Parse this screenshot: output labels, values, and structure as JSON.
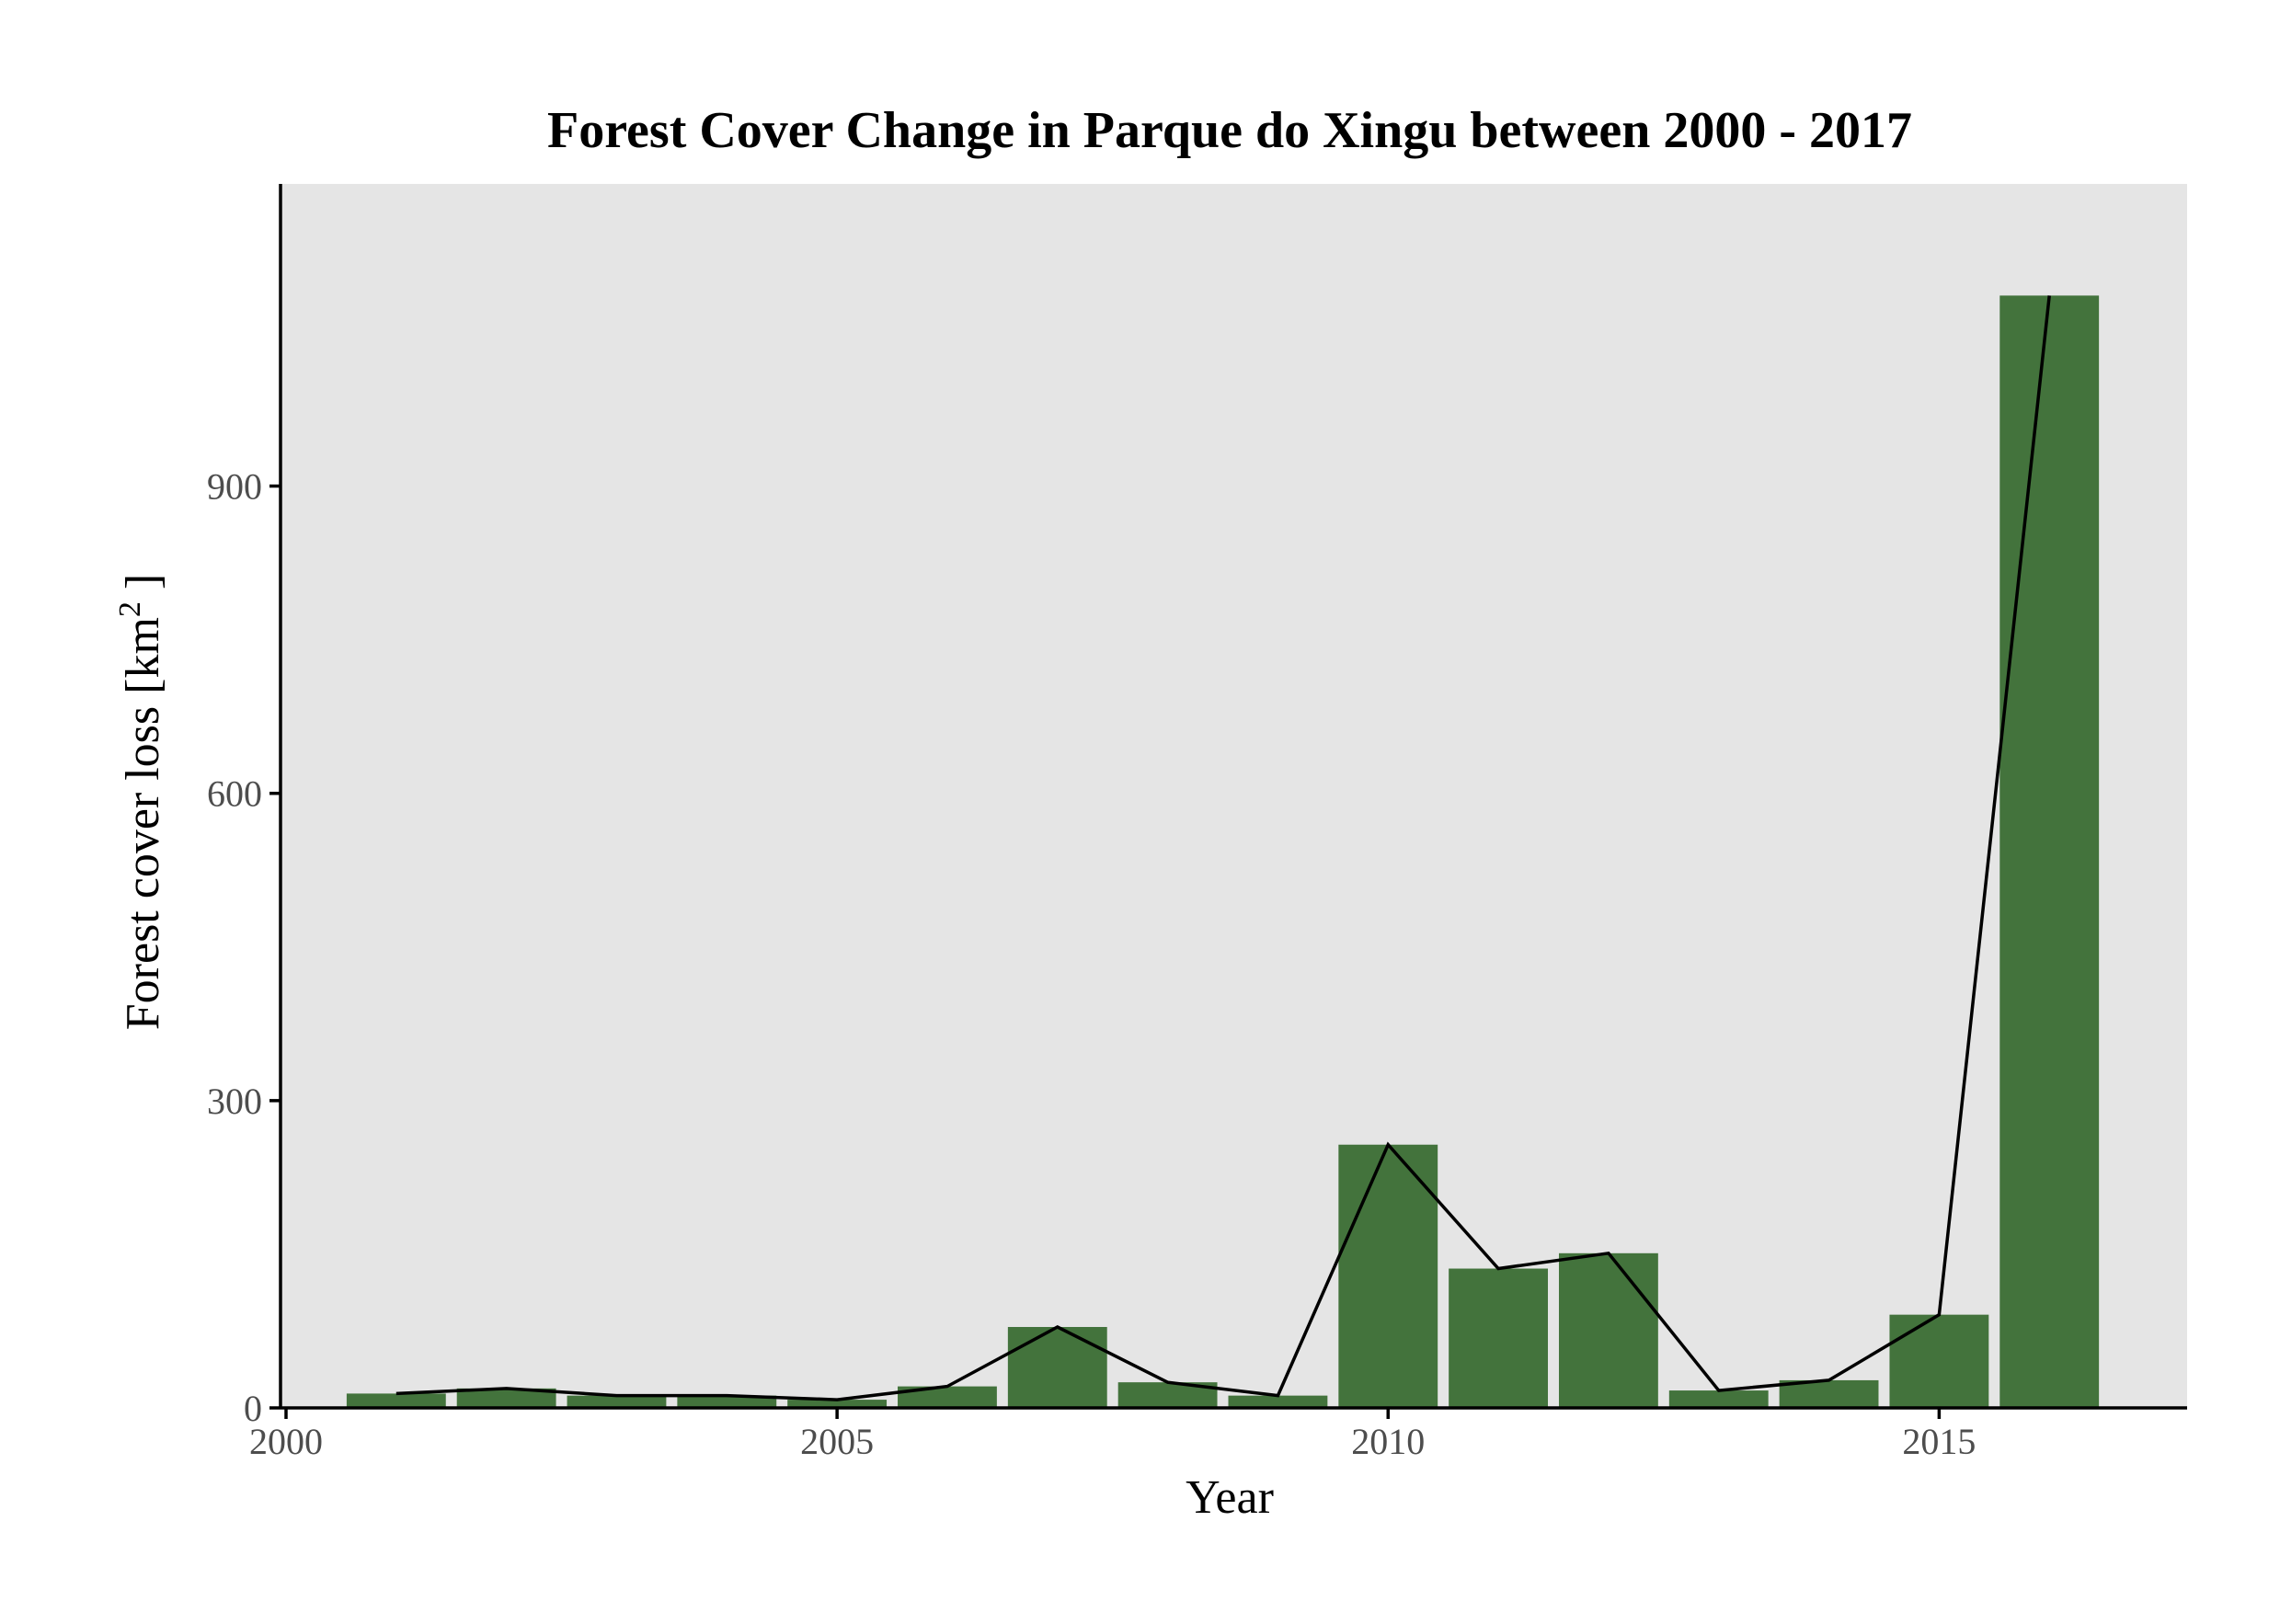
{
  "chart_data": {
    "type": "bar",
    "title": "Forest Cover Change in Parque do Xingu between 2000 - 2017",
    "xlabel": "Year",
    "ylabel": "Forest cover loss [km",
    "ylabel_sup": "2",
    "ylabel_close": " ]",
    "x": [
      2001,
      2002,
      2003,
      2004,
      2005,
      2006,
      2007,
      2008,
      2009,
      2010,
      2011,
      2012,
      2013,
      2014,
      2015,
      2016
    ],
    "values": [
      14,
      19,
      12,
      12,
      8,
      21,
      79,
      25,
      12,
      257,
      136,
      151,
      17,
      27,
      91,
      1086
    ],
    "line_overlay": true,
    "xlim": [
      1999.95,
      2017.25
    ],
    "ylim": [
      0,
      1195
    ],
    "x_ticks": [
      2000,
      2005,
      2010,
      2015
    ],
    "y_ticks": [
      0,
      300,
      600,
      900
    ],
    "bar_color": "#43733c",
    "line_color": "#000000",
    "panel_color": "#e5e5e5",
    "grid": false,
    "legend": "none"
  }
}
